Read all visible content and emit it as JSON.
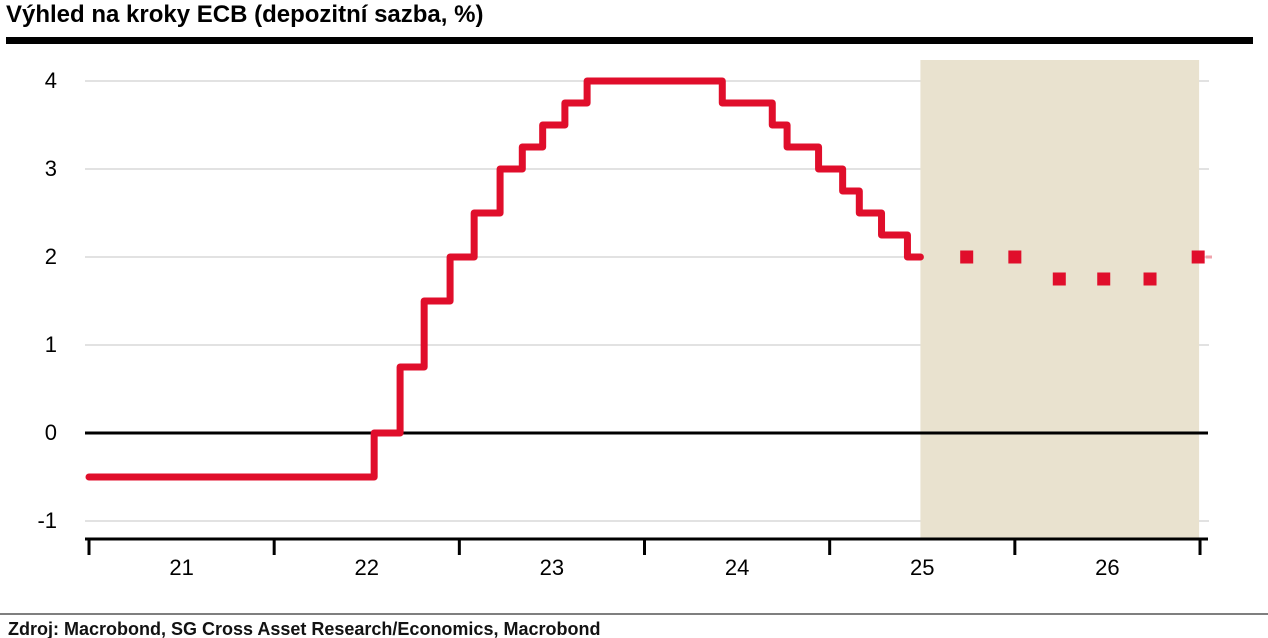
{
  "title": "Výhled na kroky ECB (depozitní sazba, %)",
  "source": "Zdroj: Macrobond, SG Cross Asset Research/Economics, Macrobond",
  "colors": {
    "line": "#E00E2B",
    "forecast_dot": "#E00E2B",
    "forecast_edge_dash": "#F0A3AC",
    "forecast_shade": "#E9E2CF",
    "gridline": "#E2E2E2",
    "zero_line": "#000000",
    "axis": "#000000",
    "title_rule": "#000000",
    "source_rule": "#7F7F7F",
    "text": "#000000"
  },
  "chart_data": {
    "type": "line",
    "subtype": "step",
    "title": "Výhled na kroky ECB (depozitní sazba, %)",
    "x_unit": "year",
    "xlim": [
      2020.98,
      2027.05
    ],
    "ylim": [
      -1.25,
      4.25
    ],
    "y_ticks": [
      4,
      3,
      2,
      1,
      0,
      -1
    ],
    "x_ticks_years": [
      2021,
      2022,
      2023,
      2024,
      2025,
      2026,
      2027
    ],
    "x_tick_labels": [
      "21",
      "22",
      "23",
      "24",
      "25",
      "26"
    ],
    "grid": "horizontal",
    "legend": "none",
    "zero_line": true,
    "history_step_points": [
      [
        2021.0,
        -0.5
      ],
      [
        2022.54,
        0.0
      ],
      [
        2022.68,
        0.75
      ],
      [
        2022.81,
        1.5
      ],
      [
        2022.95,
        2.0
      ],
      [
        2023.08,
        2.5
      ],
      [
        2023.22,
        3.0
      ],
      [
        2023.34,
        3.25
      ],
      [
        2023.45,
        3.5
      ],
      [
        2023.57,
        3.75
      ],
      [
        2023.69,
        4.0
      ],
      [
        2024.42,
        3.75
      ],
      [
        2024.69,
        3.5
      ],
      [
        2024.77,
        3.25
      ],
      [
        2024.94,
        3.0
      ],
      [
        2025.07,
        2.75
      ],
      [
        2025.16,
        2.5
      ],
      [
        2025.28,
        2.25
      ],
      [
        2025.42,
        2.0
      ]
    ],
    "history_end_x": 2025.49,
    "forecast_dots": [
      [
        2025.74,
        2.0
      ],
      [
        2026.0,
        2.0
      ],
      [
        2026.24,
        1.75
      ],
      [
        2026.48,
        1.75
      ],
      [
        2026.73,
        1.75
      ],
      [
        2026.99,
        2.0
      ]
    ],
    "forecast_region": [
      2025.49,
      2026.995
    ]
  }
}
